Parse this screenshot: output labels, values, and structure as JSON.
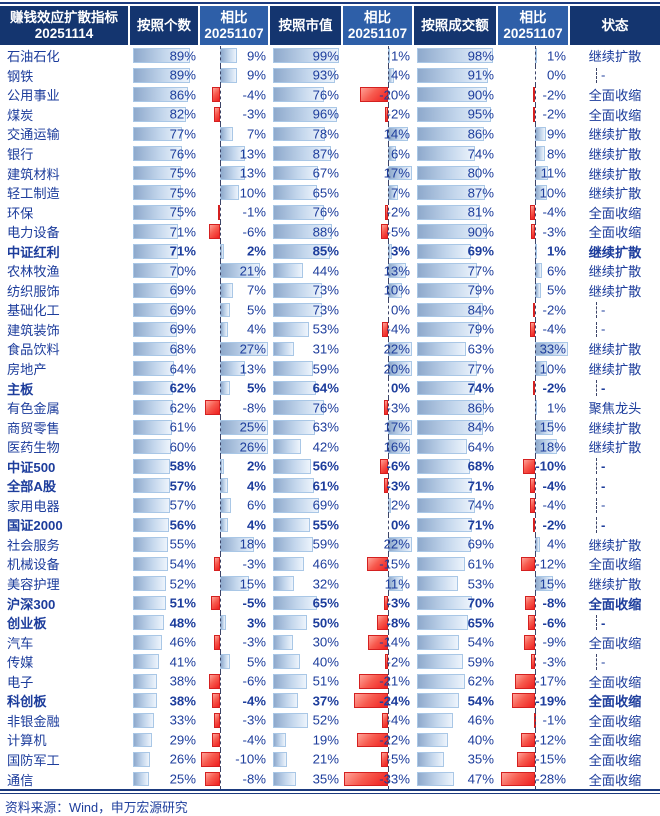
{
  "header": {
    "cells": [
      {
        "line1": "赚钱效应扩散指标",
        "line2": "20251114",
        "variant": "dark"
      },
      {
        "line1": "按照个数",
        "line2": "",
        "variant": "dark"
      },
      {
        "line1": "相比",
        "line2": "20251107",
        "variant": "light"
      },
      {
        "line1": "按照市值",
        "line2": "",
        "variant": "dark"
      },
      {
        "line1": "相比",
        "line2": "20251107",
        "variant": "light"
      },
      {
        "line1": "按照成交额",
        "line2": "",
        "variant": "dark"
      },
      {
        "line1": "相比",
        "line2": "20251107",
        "variant": "light"
      },
      {
        "line1": "状态",
        "line2": "",
        "variant": "dark"
      }
    ]
  },
  "chart_data": {
    "type": "table",
    "title": "赚钱效应扩散指标 20251114",
    "columns": [
      "名称",
      "按照个数",
      "按照个数相比20251107",
      "按照市值",
      "按照市值相比20251107",
      "按照成交额",
      "按照成交额相比20251107",
      "状态"
    ],
    "unit": "%",
    "rows": [
      {
        "name": "石油石化",
        "bold": false,
        "by_count": 89,
        "by_count_chg": 9,
        "by_mcap": 99,
        "by_mcap_chg": 1,
        "by_turnover": 98,
        "by_turnover_chg": 1,
        "status": "继续扩散"
      },
      {
        "name": "钢铁",
        "bold": false,
        "by_count": 89,
        "by_count_chg": 9,
        "by_mcap": 93,
        "by_mcap_chg": 4,
        "by_turnover": 91,
        "by_turnover_chg": 0,
        "status": "-"
      },
      {
        "name": "公用事业",
        "bold": false,
        "by_count": 86,
        "by_count_chg": -4,
        "by_mcap": 76,
        "by_mcap_chg": -20,
        "by_turnover": 90,
        "by_turnover_chg": -2,
        "status": "全面收缩"
      },
      {
        "name": "煤炭",
        "bold": false,
        "by_count": 82,
        "by_count_chg": -3,
        "by_mcap": 96,
        "by_mcap_chg": -2,
        "by_turnover": 95,
        "by_turnover_chg": -2,
        "status": "全面收缩"
      },
      {
        "name": "交通运输",
        "bold": false,
        "by_count": 77,
        "by_count_chg": 7,
        "by_mcap": 78,
        "by_mcap_chg": 14,
        "by_turnover": 86,
        "by_turnover_chg": 9,
        "status": "继续扩散"
      },
      {
        "name": "银行",
        "bold": false,
        "by_count": 76,
        "by_count_chg": 13,
        "by_mcap": 87,
        "by_mcap_chg": 6,
        "by_turnover": 74,
        "by_turnover_chg": 8,
        "status": "继续扩散"
      },
      {
        "name": "建筑材料",
        "bold": false,
        "by_count": 75,
        "by_count_chg": 13,
        "by_mcap": 67,
        "by_mcap_chg": 17,
        "by_turnover": 80,
        "by_turnover_chg": 11,
        "status": "继续扩散"
      },
      {
        "name": "轻工制造",
        "bold": false,
        "by_count": 75,
        "by_count_chg": 10,
        "by_mcap": 65,
        "by_mcap_chg": 7,
        "by_turnover": 87,
        "by_turnover_chg": 10,
        "status": "继续扩散"
      },
      {
        "name": "环保",
        "bold": false,
        "by_count": 75,
        "by_count_chg": -1,
        "by_mcap": 76,
        "by_mcap_chg": -2,
        "by_turnover": 81,
        "by_turnover_chg": -4,
        "status": "全面收缩"
      },
      {
        "name": "电力设备",
        "bold": false,
        "by_count": 71,
        "by_count_chg": -6,
        "by_mcap": 88,
        "by_mcap_chg": -5,
        "by_turnover": 90,
        "by_turnover_chg": -3,
        "status": "全面收缩"
      },
      {
        "name": "中证红利",
        "bold": true,
        "by_count": 71,
        "by_count_chg": 2,
        "by_mcap": 85,
        "by_mcap_chg": 3,
        "by_turnover": 69,
        "by_turnover_chg": 1,
        "status": "继续扩散"
      },
      {
        "name": "农林牧渔",
        "bold": false,
        "by_count": 70,
        "by_count_chg": 21,
        "by_mcap": 44,
        "by_mcap_chg": 13,
        "by_turnover": 77,
        "by_turnover_chg": 6,
        "status": "继续扩散"
      },
      {
        "name": "纺织服饰",
        "bold": false,
        "by_count": 69,
        "by_count_chg": 7,
        "by_mcap": 73,
        "by_mcap_chg": 10,
        "by_turnover": 79,
        "by_turnover_chg": 5,
        "status": "继续扩散"
      },
      {
        "name": "基础化工",
        "bold": false,
        "by_count": 69,
        "by_count_chg": 5,
        "by_mcap": 73,
        "by_mcap_chg": 0,
        "by_turnover": 84,
        "by_turnover_chg": -2,
        "status": "-"
      },
      {
        "name": "建筑装饰",
        "bold": false,
        "by_count": 69,
        "by_count_chg": 4,
        "by_mcap": 53,
        "by_mcap_chg": -4,
        "by_turnover": 79,
        "by_turnover_chg": -4,
        "status": "-"
      },
      {
        "name": "食品饮料",
        "bold": false,
        "by_count": 68,
        "by_count_chg": 27,
        "by_mcap": 31,
        "by_mcap_chg": 22,
        "by_turnover": 63,
        "by_turnover_chg": 33,
        "status": "继续扩散"
      },
      {
        "name": "房地产",
        "bold": false,
        "by_count": 64,
        "by_count_chg": 13,
        "by_mcap": 59,
        "by_mcap_chg": 20,
        "by_turnover": 77,
        "by_turnover_chg": 10,
        "status": "继续扩散"
      },
      {
        "name": "主板",
        "bold": true,
        "by_count": 62,
        "by_count_chg": 5,
        "by_mcap": 64,
        "by_mcap_chg": 0,
        "by_turnover": 74,
        "by_turnover_chg": -2,
        "status": "-"
      },
      {
        "name": "有色金属",
        "bold": false,
        "by_count": 62,
        "by_count_chg": -8,
        "by_mcap": 76,
        "by_mcap_chg": -3,
        "by_turnover": 86,
        "by_turnover_chg": 1,
        "status": "聚焦龙头"
      },
      {
        "name": "商贸零售",
        "bold": false,
        "by_count": 61,
        "by_count_chg": 25,
        "by_mcap": 63,
        "by_mcap_chg": 17,
        "by_turnover": 84,
        "by_turnover_chg": 15,
        "status": "继续扩散"
      },
      {
        "name": "医药生物",
        "bold": false,
        "by_count": 60,
        "by_count_chg": 26,
        "by_mcap": 42,
        "by_mcap_chg": 16,
        "by_turnover": 64,
        "by_turnover_chg": 18,
        "status": "继续扩散"
      },
      {
        "name": "中证500",
        "bold": true,
        "by_count": 58,
        "by_count_chg": 2,
        "by_mcap": 56,
        "by_mcap_chg": -6,
        "by_turnover": 68,
        "by_turnover_chg": -10,
        "status": "-"
      },
      {
        "name": "全部A股",
        "bold": true,
        "by_count": 57,
        "by_count_chg": 4,
        "by_mcap": 61,
        "by_mcap_chg": -3,
        "by_turnover": 71,
        "by_turnover_chg": -4,
        "status": "-"
      },
      {
        "name": "家用电器",
        "bold": false,
        "by_count": 57,
        "by_count_chg": 6,
        "by_mcap": 69,
        "by_mcap_chg": 2,
        "by_turnover": 74,
        "by_turnover_chg": -4,
        "status": "-"
      },
      {
        "name": "国证2000",
        "bold": true,
        "by_count": 56,
        "by_count_chg": 4,
        "by_mcap": 55,
        "by_mcap_chg": 0,
        "by_turnover": 71,
        "by_turnover_chg": -2,
        "status": "-"
      },
      {
        "name": "社会服务",
        "bold": false,
        "by_count": 55,
        "by_count_chg": 18,
        "by_mcap": 59,
        "by_mcap_chg": 22,
        "by_turnover": 69,
        "by_turnover_chg": 4,
        "status": "继续扩散"
      },
      {
        "name": "机械设备",
        "bold": false,
        "by_count": 54,
        "by_count_chg": -3,
        "by_mcap": 46,
        "by_mcap_chg": -15,
        "by_turnover": 61,
        "by_turnover_chg": -12,
        "status": "全面收缩"
      },
      {
        "name": "美容护理",
        "bold": false,
        "by_count": 52,
        "by_count_chg": 15,
        "by_mcap": 32,
        "by_mcap_chg": 11,
        "by_turnover": 53,
        "by_turnover_chg": 15,
        "status": "继续扩散"
      },
      {
        "name": "沪深300",
        "bold": true,
        "by_count": 51,
        "by_count_chg": -5,
        "by_mcap": 65,
        "by_mcap_chg": -3,
        "by_turnover": 70,
        "by_turnover_chg": -8,
        "status": "全面收缩"
      },
      {
        "name": "创业板",
        "bold": true,
        "by_count": 48,
        "by_count_chg": 3,
        "by_mcap": 50,
        "by_mcap_chg": -8,
        "by_turnover": 65,
        "by_turnover_chg": -6,
        "status": "-"
      },
      {
        "name": "汽车",
        "bold": false,
        "by_count": 46,
        "by_count_chg": -3,
        "by_mcap": 30,
        "by_mcap_chg": -14,
        "by_turnover": 54,
        "by_turnover_chg": -9,
        "status": "全面收缩"
      },
      {
        "name": "传媒",
        "bold": false,
        "by_count": 41,
        "by_count_chg": 5,
        "by_mcap": 40,
        "by_mcap_chg": -2,
        "by_turnover": 59,
        "by_turnover_chg": -3,
        "status": "-"
      },
      {
        "name": "电子",
        "bold": false,
        "by_count": 38,
        "by_count_chg": -6,
        "by_mcap": 51,
        "by_mcap_chg": -21,
        "by_turnover": 62,
        "by_turnover_chg": -17,
        "status": "全面收缩"
      },
      {
        "name": "科创板",
        "bold": true,
        "by_count": 38,
        "by_count_chg": -4,
        "by_mcap": 37,
        "by_mcap_chg": -24,
        "by_turnover": 54,
        "by_turnover_chg": -19,
        "status": "全面收缩"
      },
      {
        "name": "非银金融",
        "bold": false,
        "by_count": 33,
        "by_count_chg": -3,
        "by_mcap": 52,
        "by_mcap_chg": -4,
        "by_turnover": 46,
        "by_turnover_chg": -1,
        "status": "全面收缩"
      },
      {
        "name": "计算机",
        "bold": false,
        "by_count": 29,
        "by_count_chg": -4,
        "by_mcap": 19,
        "by_mcap_chg": -22,
        "by_turnover": 40,
        "by_turnover_chg": -12,
        "status": "全面收缩"
      },
      {
        "name": "国防军工",
        "bold": false,
        "by_count": 26,
        "by_count_chg": -10,
        "by_mcap": 21,
        "by_mcap_chg": -5,
        "by_turnover": 35,
        "by_turnover_chg": -15,
        "status": "全面收缩"
      },
      {
        "name": "通信",
        "bold": false,
        "by_count": 25,
        "by_count_chg": -8,
        "by_mcap": 35,
        "by_mcap_chg": -33,
        "by_turnover": 47,
        "by_turnover_chg": -28,
        "status": "全面收缩"
      }
    ]
  },
  "footer": {
    "source": "资料来源：Wind，申万宏源研究"
  },
  "colors": {
    "header_dark": "#14356f",
    "header_light": "#2e5fa8",
    "text_navy": "#1d3d9c",
    "bar_blue_start": "#8ea9cc",
    "bar_blue_end": "#edf4fc",
    "bar_red": "#ef1f1f",
    "rule_navy": "#1b3a7e"
  }
}
